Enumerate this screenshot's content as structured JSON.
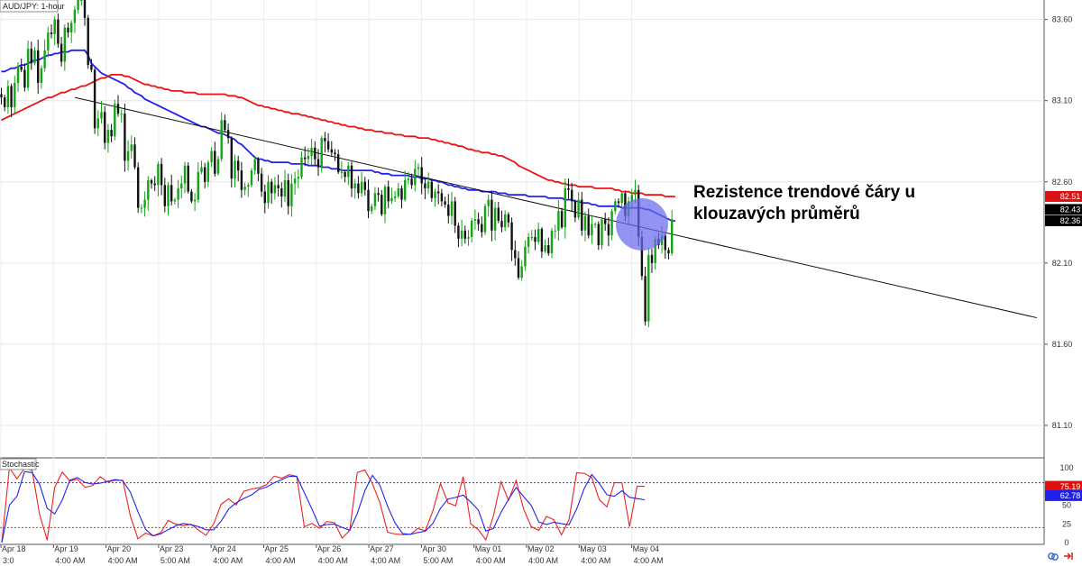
{
  "chart_data": {
    "type": "candlestick",
    "symbol_label": "AUD/JPY: 1-hour",
    "price_axis": {
      "ylim": [
        80.9,
        83.72
      ],
      "ticks": [
        "83.60",
        "83.10",
        "82.60",
        "82.10",
        "81.60",
        "81.10"
      ]
    },
    "date_labels": [
      "Apr 18",
      "Apr 19",
      "Apr 20",
      "Apr 23",
      "Apr 24",
      "Apr 25",
      "Apr 26",
      "Apr 27",
      "Apr 30",
      "May 01",
      "May 02",
      "May 03",
      "May 04"
    ],
    "time_labels": [
      "3:0",
      "4:00 AM",
      "4:00 AM",
      "5:00 AM",
      "4:00 AM",
      "4:00 AM",
      "4:00 AM",
      "4:00 AM",
      "5:00 AM",
      "4:00 AM",
      "4:00 AM",
      "4:00 AM",
      "4:00 AM"
    ],
    "price_tags": [
      {
        "text": "82.51",
        "value": 82.51,
        "color": "#dd1111"
      },
      {
        "text": "82.43",
        "value": 82.43,
        "color": "#000000"
      },
      {
        "text": "82.36",
        "value": 82.36,
        "color": "#000000"
      }
    ],
    "series": [
      {
        "name": "",
        "kind": "candles",
        "color_up": "#15a315",
        "color_down": "#111111",
        "close": [
          83.12,
          83.06,
          83.19,
          83.06,
          83.21,
          83.31,
          83.29,
          83.18,
          83.42,
          83.33,
          83.41,
          83.21,
          83.3,
          83.41,
          83.52,
          83.51,
          83.6,
          83.45,
          83.34,
          83.55,
          83.52,
          83.58,
          83.66,
          83.72,
          83.72,
          83.61,
          83.32,
          83.29,
          82.93,
          82.99,
          83.03,
          82.84,
          82.92,
          82.88,
          83.08,
          83.02,
          83.02,
          82.73,
          82.79,
          82.83,
          82.69,
          82.44,
          82.44,
          82.49,
          82.61,
          82.59,
          82.58,
          82.71,
          82.58,
          82.45,
          82.58,
          82.48,
          82.49,
          82.56,
          82.59,
          82.7,
          82.54,
          82.48,
          82.49,
          82.66,
          82.69,
          82.6,
          82.72,
          82.79,
          82.65,
          82.74,
          82.98,
          82.92,
          82.87,
          82.62,
          82.73,
          82.67,
          82.55,
          82.57,
          82.58,
          82.67,
          82.74,
          82.65,
          82.54,
          82.47,
          82.6,
          82.53,
          82.58,
          82.56,
          82.51,
          82.61,
          82.45,
          82.59,
          82.62,
          82.63,
          82.75,
          82.74,
          82.76,
          82.81,
          82.74,
          82.69,
          82.87,
          82.85,
          82.8,
          82.78,
          82.77,
          82.66,
          82.66,
          82.63,
          82.7,
          82.56,
          82.59,
          82.53,
          82.6,
          82.55,
          82.42,
          82.45,
          82.53,
          82.52,
          82.4,
          82.57,
          82.48,
          82.5,
          82.51,
          82.56,
          82.49,
          82.61,
          82.62,
          82.58,
          82.68,
          82.69,
          82.59,
          82.56,
          82.6,
          82.5,
          82.54,
          82.53,
          82.48,
          82.46,
          82.39,
          82.48,
          82.33,
          82.25,
          82.3,
          82.25,
          82.26,
          82.36,
          82.37,
          82.34,
          82.29,
          82.45,
          82.49,
          82.3,
          82.44,
          82.36,
          82.32,
          82.4,
          82.35,
          82.18,
          82.13,
          82.01,
          82.08,
          82.2,
          82.26,
          82.26,
          82.23,
          82.31,
          82.17,
          82.21,
          82.16,
          82.3,
          82.3,
          82.42,
          82.32,
          82.56,
          82.55,
          82.48,
          82.38,
          82.49,
          82.3,
          82.39,
          82.27,
          82.34,
          82.34,
          82.21,
          82.37,
          82.34,
          82.27,
          82.42,
          82.48,
          82.47,
          82.53,
          82.39,
          82.48,
          82.52,
          82.55,
          82.26,
          82.02,
          81.74,
          82.15,
          82.1,
          82.25,
          82.21,
          82.27,
          82.18,
          82.16,
          82.37
        ]
      },
      {
        "name": "",
        "kind": "sma",
        "color": "#2020ee",
        "values": [
          83.28,
          83.28,
          83.29,
          83.3,
          83.3,
          83.31,
          83.32,
          83.32,
          83.33,
          83.34,
          83.35,
          83.35,
          83.36,
          83.37,
          83.38,
          83.38,
          83.39,
          83.39,
          83.4,
          83.4,
          83.4,
          83.41,
          83.41,
          83.41,
          83.41,
          83.41,
          83.38,
          83.33,
          83.31,
          83.29,
          83.27,
          83.26,
          83.25,
          83.24,
          83.23,
          83.22,
          83.21,
          83.2,
          83.18,
          83.17,
          83.15,
          83.14,
          83.13,
          83.11,
          83.1,
          83.09,
          83.08,
          83.07,
          83.06,
          83.05,
          83.04,
          83.03,
          83.02,
          83.01,
          83.0,
          82.99,
          82.98,
          82.97,
          82.96,
          82.95,
          82.94,
          82.94,
          82.93,
          82.92,
          82.91,
          82.9,
          82.9,
          82.89,
          82.88,
          82.87,
          82.86,
          82.84,
          82.83,
          82.81,
          82.79,
          82.77,
          82.75,
          82.74,
          82.74,
          82.73,
          82.73,
          82.72,
          82.72,
          82.72,
          82.72,
          82.72,
          82.72,
          82.71,
          82.71,
          82.71,
          82.71,
          82.71,
          82.7,
          82.7,
          82.7,
          82.7,
          82.69,
          82.69,
          82.69,
          82.68,
          82.68,
          82.68,
          82.67,
          82.67,
          82.67,
          82.67,
          82.67,
          82.67,
          82.67,
          82.67,
          82.67,
          82.67,
          82.66,
          82.66,
          82.65,
          82.65,
          82.65,
          82.64,
          82.64,
          82.64,
          82.64,
          82.64,
          82.64,
          82.63,
          82.63,
          82.63,
          82.62,
          82.62,
          82.62,
          82.61,
          82.61,
          82.6,
          82.6,
          82.59,
          82.58,
          82.58,
          82.57,
          82.57,
          82.56,
          82.56,
          82.55,
          82.55,
          82.55,
          82.55,
          82.54,
          82.54,
          82.54,
          82.54,
          82.54,
          82.53,
          82.53,
          82.53,
          82.52,
          82.52,
          82.52,
          82.52,
          82.52,
          82.52,
          82.51,
          82.51,
          82.51,
          82.51,
          82.51,
          82.51,
          82.5,
          82.5,
          82.5,
          82.5,
          82.5,
          82.49,
          82.49,
          82.49,
          82.48,
          82.48,
          82.47,
          82.47,
          82.47,
          82.46,
          82.46,
          82.45,
          82.45,
          82.45,
          82.45,
          82.45,
          82.45,
          82.45,
          82.44,
          82.44,
          82.44,
          82.44,
          82.44,
          82.44,
          82.44,
          82.43,
          82.43,
          82.42,
          82.41,
          82.4,
          82.39,
          82.38,
          82.37,
          82.36,
          82.36
        ]
      },
      {
        "name": "",
        "kind": "sma",
        "color": "#ee1111",
        "values": [
          82.98,
          82.99,
          83.0,
          83.01,
          83.02,
          83.03,
          83.04,
          83.05,
          83.06,
          83.07,
          83.08,
          83.09,
          83.1,
          83.11,
          83.12,
          83.12,
          83.13,
          83.14,
          83.15,
          83.15,
          83.16,
          83.17,
          83.17,
          83.18,
          83.19,
          83.19,
          83.2,
          83.21,
          83.22,
          83.23,
          83.24,
          83.24,
          83.25,
          83.26,
          83.26,
          83.26,
          83.26,
          83.25,
          83.25,
          83.24,
          83.23,
          83.22,
          83.21,
          83.2,
          83.2,
          83.19,
          83.19,
          83.18,
          83.18,
          83.17,
          83.17,
          83.16,
          83.16,
          83.16,
          83.16,
          83.15,
          83.15,
          83.15,
          83.15,
          83.14,
          83.14,
          83.14,
          83.14,
          83.14,
          83.14,
          83.14,
          83.14,
          83.14,
          83.13,
          83.13,
          83.13,
          83.12,
          83.12,
          83.11,
          83.1,
          83.09,
          83.08,
          83.07,
          83.07,
          83.06,
          83.06,
          83.05,
          83.05,
          83.04,
          83.04,
          83.03,
          83.03,
          83.02,
          83.02,
          83.02,
          83.01,
          83.01,
          83.0,
          83.0,
          82.99,
          82.99,
          82.98,
          82.98,
          82.97,
          82.97,
          82.96,
          82.96,
          82.95,
          82.95,
          82.94,
          82.94,
          82.94,
          82.93,
          82.93,
          82.92,
          82.92,
          82.92,
          82.91,
          82.91,
          82.91,
          82.9,
          82.9,
          82.9,
          82.89,
          82.89,
          82.89,
          82.88,
          82.88,
          82.88,
          82.88,
          82.87,
          82.87,
          82.87,
          82.87,
          82.86,
          82.86,
          82.85,
          82.85,
          82.84,
          82.84,
          82.83,
          82.83,
          82.82,
          82.82,
          82.81,
          82.8,
          82.8,
          82.79,
          82.79,
          82.78,
          82.78,
          82.78,
          82.77,
          82.77,
          82.76,
          82.76,
          82.75,
          82.74,
          82.73,
          82.72,
          82.7,
          82.69,
          82.68,
          82.67,
          82.66,
          82.65,
          82.64,
          82.63,
          82.62,
          82.61,
          82.61,
          82.6,
          82.6,
          82.59,
          82.59,
          82.58,
          82.58,
          82.58,
          82.57,
          82.57,
          82.57,
          82.57,
          82.57,
          82.56,
          82.56,
          82.56,
          82.56,
          82.56,
          82.56,
          82.55,
          82.55,
          82.54,
          82.54,
          82.54,
          82.53,
          82.53,
          82.53,
          82.53,
          82.52,
          82.52,
          82.52,
          82.52,
          82.52,
          82.52,
          82.51,
          82.51,
          82.51,
          82.51
        ]
      },
      {
        "name": "",
        "kind": "trendline",
        "color": "#111111",
        "points": [
          {
            "i": 22,
            "y": 83.12
          },
          {
            "i": 192,
            "y": 82.32
          }
        ]
      }
    ],
    "annotation": {
      "lines": [
        "Rezistence trendové čáry u",
        "klouzavých průměrů"
      ],
      "circle_color": "#6a6aee"
    },
    "stochastic": {
      "title": "Stochastic",
      "ylim": [
        0,
        100
      ],
      "ticks": [
        "100",
        "75",
        "50",
        "25",
        "0"
      ],
      "overbought": 80,
      "oversold": 20,
      "tags": [
        {
          "text": "75.19",
          "value": 75.19,
          "color": "#dd1111"
        },
        {
          "text": "62.78",
          "value": 62.78,
          "color": "#2020ee"
        }
      ],
      "k_color": "#ee2222",
      "d_color": "#2222ee",
      "k": [
        0,
        100,
        85.3,
        99.1,
        96.6,
        37.8,
        3.2,
        73.9,
        94.1,
        82.3,
        84.7,
        73.8,
        76.2,
        88.1,
        81.0,
        83.4,
        83.2,
        35.3,
        5.0,
        12.7,
        9.0,
        13.1,
        29.5,
        24.6,
        22.4,
        24.6,
        16.8,
        9.8,
        24.8,
        51.3,
        58.3,
        50.2,
        68.6,
        71.6,
        73.3,
        77.4,
        88.9,
        86.1,
        90.7,
        88.6,
        21.1,
        25.5,
        19.0,
        28.2,
        26.5,
        6.0,
        16.6,
        93.6,
        97.1,
        78.8,
        53.1,
        13.8,
        11.4,
        10.6,
        10.9,
        18.7,
        15.9,
        42.4,
        78.9,
        53.1,
        49.1,
        88.2,
        25.0,
        17.2,
        3.6,
        35.6,
        81.5,
        56.5,
        82.9,
        44.6,
        21.3,
        16.4,
        34.9,
        30.4,
        10.4,
        30.7,
        93.3,
        92.5,
        87.0,
        57.4,
        47.7,
        80.3,
        79.9,
        21.2,
        75.3,
        75.19
      ]
    }
  }
}
